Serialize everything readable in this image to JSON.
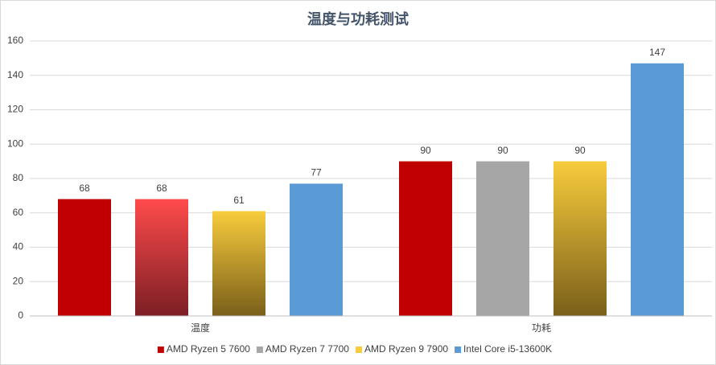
{
  "chart_data": {
    "type": "bar",
    "title": "温度与功耗测试",
    "categories": [
      "温度",
      "功耗"
    ],
    "series": [
      {
        "name": "AMD Ryzen 5 7600",
        "color": "#c00000",
        "values": [
          68,
          90
        ],
        "bar_colors": [
          "#c00000",
          "#c00000"
        ],
        "gradient_bottom": [
          null,
          null
        ]
      },
      {
        "name": "AMD Ryzen 7 7700",
        "color": "#a6a6a6",
        "values": [
          68,
          90
        ],
        "bar_colors": [
          "#ff4b4b",
          "#a6a6a6"
        ],
        "gradient_bottom": [
          "#7b1e24",
          null
        ]
      },
      {
        "name": "AMD Ryzen 9 7900",
        "color": "#f8cc3c",
        "values": [
          61,
          90
        ],
        "bar_colors": [
          "#f8cc3c",
          "#f8cc3c"
        ],
        "gradient_bottom": [
          "#7a5f1a",
          "#7a5f1a"
        ]
      },
      {
        "name": "Intel Core i5-13600K",
        "color": "#5b9bd5",
        "values": [
          77,
          147
        ],
        "bar_colors": [
          "#5b9bd5",
          "#5b9bd5"
        ],
        "gradient_bottom": [
          null,
          null
        ]
      }
    ],
    "ylim": [
      0,
      160
    ],
    "yticks": [
      0,
      20,
      40,
      60,
      80,
      100,
      120,
      140,
      160
    ],
    "grid": true,
    "legend": "bottom"
  }
}
